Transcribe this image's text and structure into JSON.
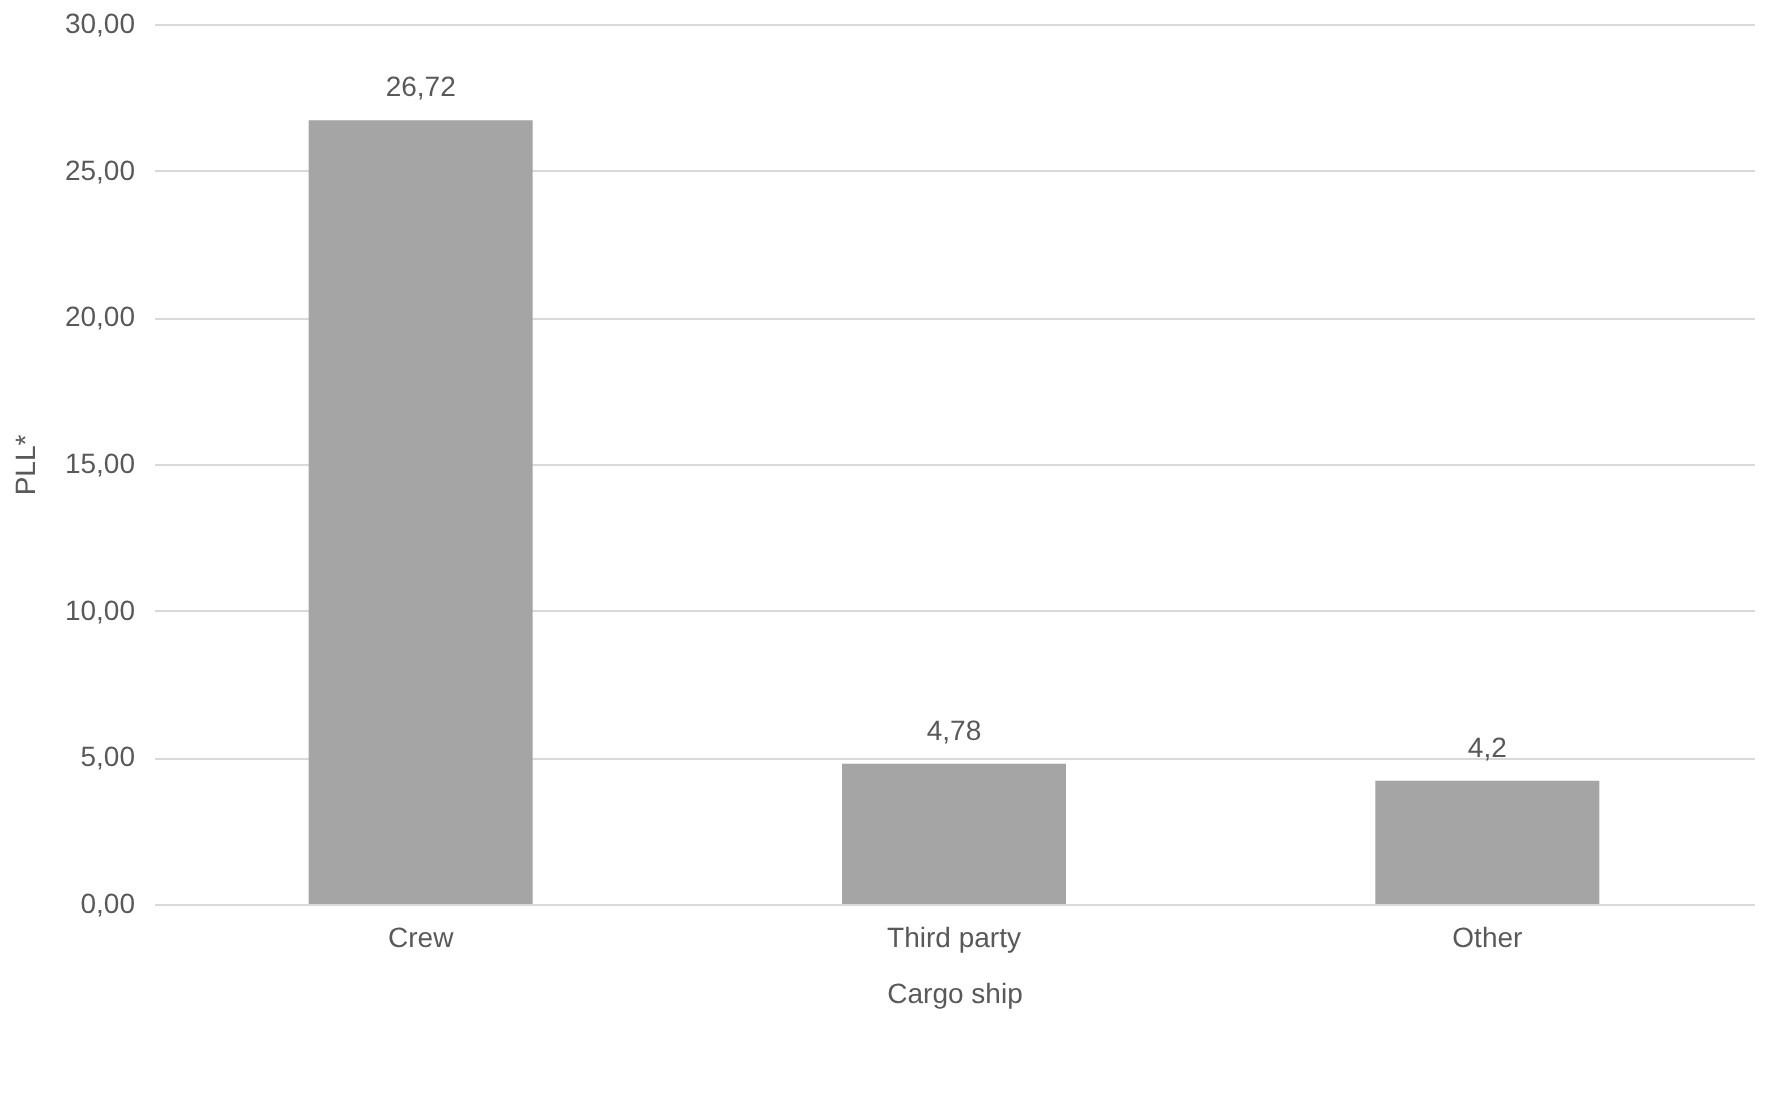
{
  "chart_data": {
    "type": "bar",
    "xlabel": "Cargo ship",
    "ylabel": "PLL*",
    "categories": [
      "Crew",
      "Third party",
      "Other"
    ],
    "values": [
      26.72,
      4.78,
      4.2
    ],
    "value_labels": [
      "26,72",
      "4,78",
      "4,2"
    ],
    "color": "#a5a5a5",
    "ylim": [
      0,
      30
    ],
    "yticks": [
      {
        "value": 0,
        "label": "0,00"
      },
      {
        "value": 5,
        "label": "5,00"
      },
      {
        "value": 10,
        "label": "10,00"
      },
      {
        "value": 15,
        "label": "15,00"
      },
      {
        "value": 20,
        "label": "20,00"
      },
      {
        "value": 25,
        "label": "25,00"
      },
      {
        "value": 30,
        "label": "30,00"
      }
    ],
    "grid": "y"
  }
}
